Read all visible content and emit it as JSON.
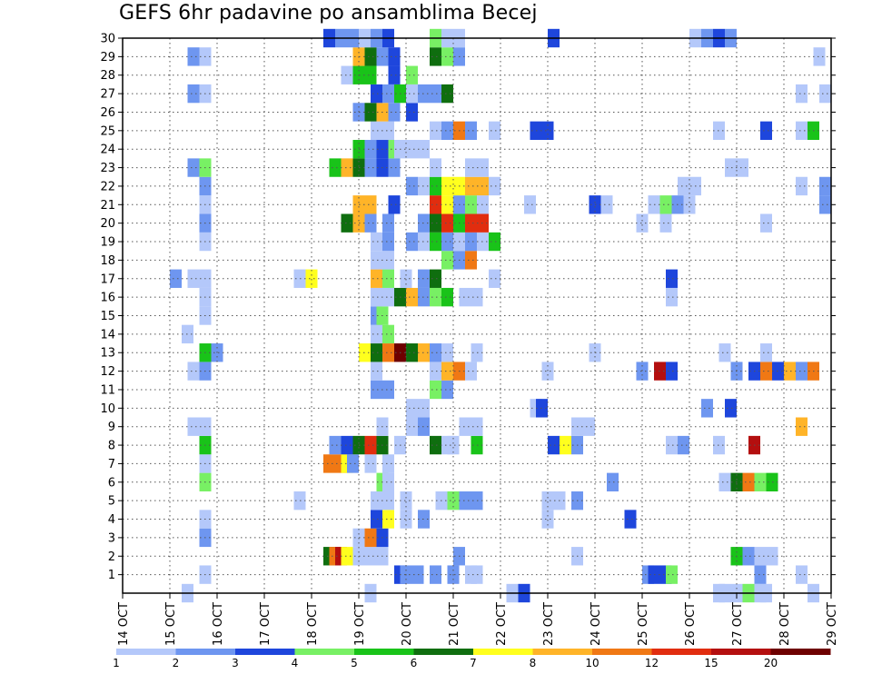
{
  "chart_data": {
    "type": "heatmap",
    "title": "GEFS 6hr padavine po ansamblima Becej",
    "xlabel": "",
    "ylabel": "",
    "x_ticks": [
      "14 OCT",
      "15 OCT",
      "16 OCT",
      "17 OCT",
      "18 OCT",
      "19 OCT",
      "20 OCT",
      "21 OCT",
      "22 OCT",
      "23 OCT",
      "24 OCT",
      "25 OCT",
      "26 OCT",
      "27 OCT",
      "28 OCT",
      "29 OCT"
    ],
    "y_ticks": [
      1,
      2,
      3,
      4,
      5,
      6,
      7,
      8,
      9,
      10,
      11,
      12,
      13,
      14,
      15,
      16,
      17,
      18,
      19,
      20,
      21,
      22,
      23,
      24,
      25,
      26,
      27,
      28,
      29,
      30
    ],
    "x_range": [
      0,
      15
    ],
    "y_range": [
      0,
      30
    ],
    "grid": true,
    "colorbar": {
      "labels": [
        "1",
        "2",
        "3",
        "4",
        "5",
        "6",
        "7",
        "8",
        "10",
        "12",
        "15",
        "20"
      ],
      "colors": [
        "#b4c8fa",
        "#6e96f0",
        "#1e46dc",
        "#78f064",
        "#19c319",
        "#0f6e0f",
        "#ffff1e",
        "#ffb428",
        "#f07814",
        "#e12d0f",
        "#b40f0f",
        "#6e0000"
      ]
    },
    "cells": [
      [
        1.375,
        0,
        0
      ],
      [
        5.25,
        0,
        0
      ],
      [
        8.25,
        0,
        0
      ],
      [
        8.5,
        0,
        2
      ],
      [
        12.625,
        0,
        0
      ],
      [
        12.75,
        0,
        0
      ],
      [
        13.0,
        0,
        0
      ],
      [
        13.25,
        0,
        3
      ],
      [
        13.5,
        0,
        0
      ],
      [
        13.625,
        0,
        0
      ],
      [
        14.625,
        0,
        0
      ],
      [
        1.75,
        1,
        0
      ],
      [
        5.875,
        1,
        2
      ],
      [
        6.0,
        1,
        1
      ],
      [
        6.25,
        1,
        1
      ],
      [
        6.625,
        1,
        1
      ],
      [
        7.0,
        1,
        1
      ],
      [
        7.375,
        1,
        0
      ],
      [
        7.5,
        1,
        0
      ],
      [
        11.125,
        1,
        1
      ],
      [
        11.25,
        1,
        2
      ],
      [
        11.5,
        1,
        2
      ],
      [
        11.625,
        1,
        3
      ],
      [
        13.5,
        1,
        1
      ],
      [
        14.375,
        1,
        0
      ],
      [
        4.375,
        2,
        5
      ],
      [
        4.5,
        2,
        8
      ],
      [
        4.625,
        2,
        10
      ],
      [
        4.75,
        2,
        6
      ],
      [
        5.0,
        2,
        0
      ],
      [
        5.25,
        2,
        0
      ],
      [
        5.5,
        2,
        0
      ],
      [
        7.125,
        2,
        1
      ],
      [
        9.625,
        2,
        0
      ],
      [
        13.0,
        2,
        4
      ],
      [
        13.25,
        2,
        1
      ],
      [
        13.5,
        2,
        0
      ],
      [
        13.75,
        2,
        0
      ],
      [
        1.75,
        3,
        1
      ],
      [
        5.0,
        3,
        0
      ],
      [
        5.25,
        3,
        8
      ],
      [
        5.5,
        3,
        2
      ],
      [
        1.75,
        4,
        0
      ],
      [
        5.375,
        4,
        2
      ],
      [
        5.625,
        4,
        6
      ],
      [
        6.0,
        4,
        0
      ],
      [
        6.375,
        4,
        1
      ],
      [
        9.0,
        4,
        0
      ],
      [
        10.75,
        4,
        2
      ],
      [
        3.75,
        5,
        0
      ],
      [
        5.375,
        5,
        0
      ],
      [
        5.625,
        5,
        0
      ],
      [
        6.0,
        5,
        0
      ],
      [
        6.75,
        5,
        0
      ],
      [
        7.0,
        5,
        3
      ],
      [
        7.25,
        5,
        1
      ],
      [
        7.5,
        5,
        1
      ],
      [
        9.0,
        5,
        0
      ],
      [
        9.25,
        5,
        0
      ],
      [
        9.625,
        5,
        1
      ],
      [
        1.75,
        6,
        3
      ],
      [
        5.5,
        6,
        3
      ],
      [
        5.625,
        6,
        0
      ],
      [
        10.375,
        6,
        1
      ],
      [
        12.75,
        6,
        0
      ],
      [
        13.0,
        6,
        5
      ],
      [
        13.25,
        6,
        8
      ],
      [
        13.5,
        6,
        3
      ],
      [
        13.75,
        6,
        4
      ],
      [
        1.75,
        7,
        0
      ],
      [
        4.375,
        7,
        8
      ],
      [
        4.625,
        7,
        8
      ],
      [
        4.75,
        7,
        6
      ],
      [
        4.875,
        7,
        1
      ],
      [
        5.25,
        7,
        0
      ],
      [
        5.625,
        7,
        0
      ],
      [
        1.75,
        8,
        4
      ],
      [
        4.5,
        8,
        1
      ],
      [
        4.75,
        8,
        2
      ],
      [
        5.0,
        8,
        5
      ],
      [
        5.25,
        8,
        9
      ],
      [
        5.5,
        8,
        5
      ],
      [
        5.875,
        8,
        0
      ],
      [
        6.625,
        8,
        5
      ],
      [
        6.875,
        8,
        0
      ],
      [
        7.0,
        8,
        0
      ],
      [
        7.5,
        8,
        4
      ],
      [
        9.125,
        8,
        2
      ],
      [
        9.375,
        8,
        6
      ],
      [
        9.625,
        8,
        1
      ],
      [
        11.625,
        8,
        0
      ],
      [
        11.875,
        8,
        1
      ],
      [
        12.625,
        8,
        0
      ],
      [
        13.375,
        8,
        10
      ],
      [
        1.5,
        9,
        0
      ],
      [
        1.75,
        9,
        0
      ],
      [
        5.5,
        9,
        0
      ],
      [
        6.125,
        9,
        0
      ],
      [
        6.375,
        9,
        1
      ],
      [
        7.25,
        9,
        0
      ],
      [
        7.5,
        9,
        0
      ],
      [
        9.625,
        9,
        0
      ],
      [
        9.875,
        9,
        0
      ],
      [
        14.375,
        9,
        7
      ],
      [
        6.125,
        10,
        0
      ],
      [
        6.375,
        10,
        0
      ],
      [
        8.75,
        10,
        0
      ],
      [
        8.875,
        10,
        2
      ],
      [
        12.375,
        10,
        1
      ],
      [
        12.875,
        10,
        2
      ],
      [
        5.375,
        11,
        1
      ],
      [
        5.625,
        11,
        1
      ],
      [
        6.625,
        11,
        3
      ],
      [
        6.875,
        11,
        1
      ],
      [
        1.5,
        12,
        0
      ],
      [
        1.75,
        12,
        1
      ],
      [
        5.375,
        12,
        0
      ],
      [
        6.625,
        12,
        0
      ],
      [
        6.875,
        12,
        7
      ],
      [
        7.125,
        12,
        8
      ],
      [
        7.375,
        12,
        0
      ],
      [
        9.0,
        12,
        0
      ],
      [
        11.0,
        12,
        1
      ],
      [
        11.375,
        12,
        10
      ],
      [
        11.625,
        12,
        2
      ],
      [
        13.0,
        12,
        1
      ],
      [
        13.375,
        12,
        2
      ],
      [
        13.625,
        12,
        8
      ],
      [
        13.875,
        12,
        2
      ],
      [
        14.125,
        12,
        7
      ],
      [
        14.375,
        12,
        1
      ],
      [
        14.625,
        12,
        8
      ],
      [
        1.75,
        13,
        4
      ],
      [
        2.0,
        13,
        1
      ],
      [
        5.125,
        13,
        6
      ],
      [
        5.375,
        13,
        5
      ],
      [
        5.625,
        13,
        8
      ],
      [
        5.875,
        13,
        11
      ],
      [
        6.125,
        13,
        5
      ],
      [
        6.375,
        13,
        7
      ],
      [
        6.625,
        13,
        1
      ],
      [
        6.875,
        13,
        0
      ],
      [
        7.5,
        13,
        0
      ],
      [
        10.0,
        13,
        0
      ],
      [
        12.75,
        13,
        0
      ],
      [
        13.625,
        13,
        0
      ],
      [
        1.375,
        14,
        0
      ],
      [
        5.375,
        14,
        0
      ],
      [
        5.625,
        14,
        3
      ],
      [
        5.375,
        15,
        1
      ],
      [
        5.5,
        15,
        3
      ],
      [
        1.75,
        15,
        0
      ],
      [
        1.75,
        16,
        0
      ],
      [
        5.375,
        16,
        0
      ],
      [
        5.625,
        16,
        0
      ],
      [
        5.875,
        16,
        5
      ],
      [
        6.125,
        16,
        7
      ],
      [
        6.375,
        16,
        1
      ],
      [
        6.625,
        16,
        3
      ],
      [
        6.875,
        16,
        4
      ],
      [
        7.25,
        16,
        0
      ],
      [
        7.5,
        16,
        0
      ],
      [
        11.625,
        16,
        0
      ],
      [
        1.125,
        17,
        1
      ],
      [
        1.5,
        17,
        0
      ],
      [
        1.75,
        17,
        0
      ],
      [
        3.75,
        17,
        0
      ],
      [
        4.0,
        17,
        6
      ],
      [
        5.375,
        17,
        7
      ],
      [
        5.625,
        17,
        3
      ],
      [
        6.0,
        17,
        0
      ],
      [
        6.375,
        17,
        1
      ],
      [
        6.625,
        17,
        5
      ],
      [
        7.875,
        17,
        0
      ],
      [
        11.625,
        17,
        2
      ],
      [
        5.375,
        18,
        0
      ],
      [
        5.625,
        18,
        0
      ],
      [
        6.875,
        18,
        3
      ],
      [
        7.125,
        18,
        1
      ],
      [
        7.375,
        18,
        8
      ],
      [
        1.75,
        19,
        0
      ],
      [
        5.375,
        19,
        0
      ],
      [
        5.625,
        19,
        1
      ],
      [
        6.125,
        19,
        1
      ],
      [
        6.375,
        19,
        0
      ],
      [
        6.625,
        19,
        4
      ],
      [
        6.875,
        19,
        1
      ],
      [
        7.125,
        19,
        0
      ],
      [
        7.375,
        19,
        1
      ],
      [
        7.625,
        19,
        0
      ],
      [
        7.875,
        19,
        4
      ],
      [
        1.75,
        20,
        1
      ],
      [
        4.75,
        20,
        5
      ],
      [
        5.0,
        20,
        7
      ],
      [
        5.25,
        20,
        1
      ],
      [
        5.625,
        20,
        1
      ],
      [
        6.375,
        20,
        1
      ],
      [
        6.625,
        20,
        5
      ],
      [
        6.875,
        20,
        9
      ],
      [
        7.125,
        20,
        4
      ],
      [
        7.375,
        20,
        9
      ],
      [
        7.625,
        20,
        9
      ],
      [
        11.0,
        20,
        0
      ],
      [
        11.5,
        20,
        0
      ],
      [
        13.625,
        20,
        0
      ],
      [
        1.75,
        21,
        0
      ],
      [
        5.0,
        21,
        7
      ],
      [
        5.25,
        21,
        7
      ],
      [
        5.75,
        21,
        2
      ],
      [
        6.625,
        21,
        9
      ],
      [
        6.875,
        21,
        6
      ],
      [
        7.125,
        21,
        1
      ],
      [
        7.375,
        21,
        3
      ],
      [
        7.625,
        21,
        0
      ],
      [
        8.625,
        21,
        0
      ],
      [
        10.0,
        21,
        2
      ],
      [
        10.25,
        21,
        0
      ],
      [
        11.25,
        21,
        0
      ],
      [
        11.5,
        21,
        3
      ],
      [
        11.75,
        21,
        1
      ],
      [
        12.0,
        21,
        0
      ],
      [
        14.875,
        21,
        1
      ],
      [
        1.75,
        22,
        1
      ],
      [
        6.125,
        22,
        1
      ],
      [
        6.375,
        22,
        0
      ],
      [
        6.625,
        22,
        4
      ],
      [
        6.875,
        22,
        6
      ],
      [
        7.125,
        22,
        6
      ],
      [
        7.375,
        22,
        7
      ],
      [
        7.625,
        22,
        7
      ],
      [
        7.875,
        22,
        0
      ],
      [
        11.875,
        22,
        0
      ],
      [
        12.125,
        22,
        0
      ],
      [
        14.375,
        22,
        0
      ],
      [
        14.875,
        22,
        1
      ],
      [
        1.5,
        23,
        1
      ],
      [
        1.75,
        23,
        3
      ],
      [
        4.5,
        23,
        4
      ],
      [
        4.75,
        23,
        7
      ],
      [
        5.0,
        23,
        5
      ],
      [
        5.25,
        23,
        1
      ],
      [
        5.5,
        23,
        2
      ],
      [
        5.75,
        23,
        1
      ],
      [
        6.625,
        23,
        0
      ],
      [
        7.375,
        23,
        0
      ],
      [
        7.625,
        23,
        0
      ],
      [
        12.875,
        23,
        0
      ],
      [
        13.125,
        23,
        0
      ],
      [
        5.0,
        24,
        4
      ],
      [
        5.25,
        24,
        1
      ],
      [
        5.5,
        24,
        2
      ],
      [
        5.75,
        24,
        3
      ],
      [
        5.875,
        24,
        0
      ],
      [
        6.125,
        24,
        0
      ],
      [
        6.375,
        24,
        0
      ],
      [
        5.375,
        25,
        0
      ],
      [
        5.625,
        25,
        0
      ],
      [
        6.625,
        25,
        0
      ],
      [
        6.875,
        25,
        1
      ],
      [
        7.125,
        25,
        8
      ],
      [
        7.375,
        25,
        1
      ],
      [
        7.875,
        25,
        0
      ],
      [
        8.75,
        25,
        2
      ],
      [
        9.0,
        25,
        2
      ],
      [
        12.625,
        25,
        0
      ],
      [
        13.625,
        25,
        2
      ],
      [
        14.375,
        25,
        0
      ],
      [
        14.625,
        25,
        4
      ],
      [
        5.0,
        26,
        1
      ],
      [
        5.25,
        26,
        5
      ],
      [
        5.5,
        26,
        7
      ],
      [
        5.75,
        26,
        1
      ],
      [
        6.125,
        26,
        2
      ],
      [
        1.5,
        27,
        1
      ],
      [
        1.75,
        27,
        0
      ],
      [
        5.375,
        27,
        2
      ],
      [
        5.625,
        27,
        1
      ],
      [
        5.875,
        27,
        4
      ],
      [
        6.125,
        27,
        0
      ],
      [
        6.375,
        27,
        1
      ],
      [
        6.625,
        27,
        1
      ],
      [
        6.875,
        27,
        5
      ],
      [
        14.375,
        27,
        0
      ],
      [
        14.875,
        27,
        0
      ],
      [
        4.75,
        28,
        0
      ],
      [
        5.0,
        28,
        4
      ],
      [
        5.25,
        28,
        4
      ],
      [
        5.75,
        28,
        2
      ],
      [
        6.125,
        28,
        3
      ],
      [
        1.5,
        29,
        1
      ],
      [
        1.75,
        29,
        0
      ],
      [
        5.0,
        29,
        7
      ],
      [
        5.25,
        29,
        5
      ],
      [
        5.5,
        29,
        1
      ],
      [
        5.75,
        29,
        2
      ],
      [
        6.625,
        29,
        5
      ],
      [
        6.875,
        29,
        3
      ],
      [
        7.125,
        29,
        1
      ],
      [
        14.75,
        29,
        0
      ],
      [
        4.375,
        30,
        2
      ],
      [
        4.625,
        30,
        1
      ],
      [
        4.875,
        30,
        1
      ],
      [
        5.125,
        30,
        0
      ],
      [
        5.375,
        30,
        1
      ],
      [
        5.625,
        30,
        2
      ],
      [
        6.625,
        30,
        3
      ],
      [
        6.875,
        30,
        0
      ],
      [
        7.125,
        30,
        0
      ],
      [
        9.125,
        30,
        2
      ],
      [
        12.125,
        30,
        0
      ],
      [
        12.375,
        30,
        1
      ],
      [
        12.625,
        30,
        2
      ],
      [
        12.875,
        30,
        1
      ]
    ]
  }
}
